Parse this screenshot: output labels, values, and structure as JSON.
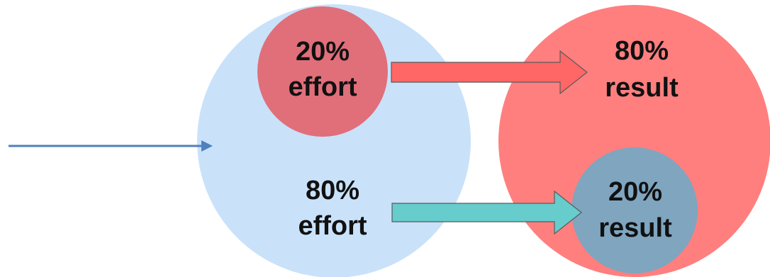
{
  "diagram": {
    "effort_small": {
      "percent": "20%",
      "word": "effort"
    },
    "effort_large": {
      "percent": "80%",
      "word": "effort"
    },
    "result_large": {
      "percent": "80%",
      "word": "result"
    },
    "result_small": {
      "percent": "20%",
      "word": "result"
    }
  },
  "colors": {
    "effort_circle": "#c9e2fa",
    "effort_small_circle": "#e06f7a",
    "result_circle": "#ff7f7f",
    "result_small_circle": "#7fa5bf",
    "arrow_top": "#ff6666",
    "arrow_bottom": "#66cccc",
    "pointer_arrow": "#4f81bd"
  }
}
